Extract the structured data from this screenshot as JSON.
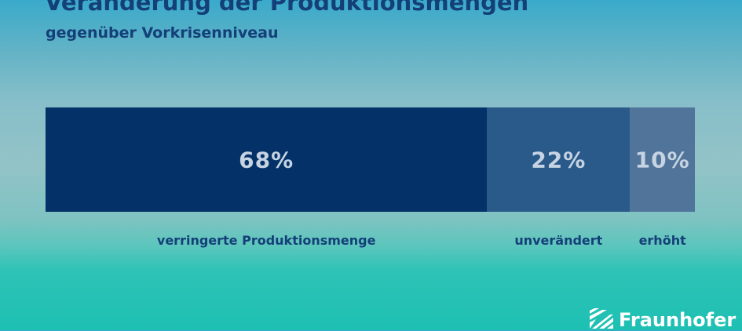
{
  "chart_data": {
    "type": "bar",
    "orientation": "horizontal-stacked",
    "title": "Veränderung der Produktionsmengen",
    "subtitle": "gegenüber Vorkrisenniveau",
    "categories": [
      "verringerte Produktionsmenge",
      "unverändert",
      "erhöht"
    ],
    "values": [
      68,
      22,
      10
    ],
    "value_labels": [
      "68%",
      "22%",
      "10%"
    ],
    "unit": "%",
    "colors": [
      "#043268",
      "#2a5a8a",
      "#51749a"
    ],
    "value_text_color": "#c6d3e2",
    "category_text_color": "#143f78",
    "xlim": [
      0,
      100
    ],
    "grid": false,
    "legend": "none"
  },
  "brand": {
    "name": "Fraunhofer",
    "color": "#ffffff"
  },
  "background": {
    "top_color": "#3aaacb",
    "bottom_color": "#1dc0b3"
  }
}
